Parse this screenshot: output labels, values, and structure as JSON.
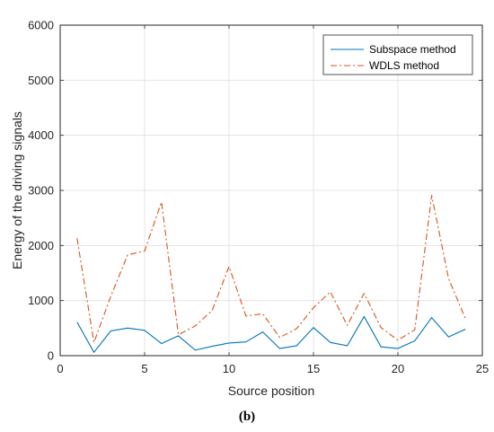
{
  "chart_data": {
    "type": "line",
    "title": "",
    "xlabel": "Source position",
    "ylabel": "Energy of the driving signals",
    "caption": "(b)",
    "xlim": [
      0,
      25
    ],
    "ylim": [
      0,
      6000
    ],
    "xticks": [
      0,
      5,
      10,
      15,
      20,
      25
    ],
    "yticks": [
      0,
      1000,
      2000,
      3000,
      4000,
      5000,
      6000
    ],
    "grid": true,
    "legend_position": "top-right",
    "x": [
      1,
      2,
      3,
      4,
      5,
      6,
      7,
      8,
      9,
      10,
      11,
      12,
      13,
      14,
      15,
      16,
      17,
      18,
      19,
      20,
      21,
      22,
      23,
      24
    ],
    "series": [
      {
        "name": "Subspace method",
        "color": "#0072BD",
        "style": "solid",
        "values": [
          610,
          60,
          450,
          500,
          460,
          220,
          360,
          100,
          170,
          230,
          250,
          430,
          130,
          180,
          510,
          240,
          180,
          710,
          160,
          130,
          270,
          690,
          340,
          480
        ]
      },
      {
        "name": "WDLS method",
        "color": "#D95319",
        "style": "dashdot",
        "values": [
          2130,
          240,
          1080,
          1830,
          1900,
          2790,
          380,
          540,
          820,
          1620,
          720,
          760,
          330,
          490,
          870,
          1160,
          550,
          1130,
          510,
          280,
          470,
          2910,
          1400,
          670
        ]
      }
    ]
  }
}
